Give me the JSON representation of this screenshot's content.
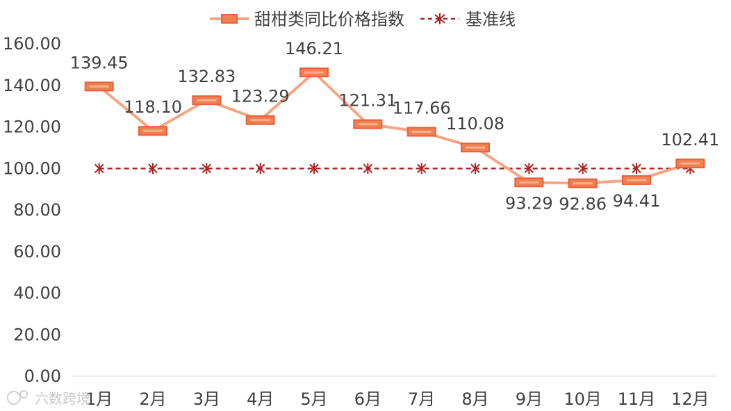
{
  "chart_data": {
    "type": "line",
    "title": "",
    "xlabel": "",
    "ylabel": "",
    "categories": [
      "1月",
      "2月",
      "3月",
      "4月",
      "5月",
      "6月",
      "7月",
      "8月",
      "9月",
      "10月",
      "11月",
      "12月"
    ],
    "ylim": [
      0,
      160
    ],
    "ytick_labels": [
      "0.00",
      "20.00",
      "40.00",
      "60.00",
      "80.00",
      "100.00",
      "120.00",
      "140.00",
      "160.00"
    ],
    "grid": false,
    "legend_position": "top",
    "series": [
      {
        "name": "甜柑类同比价格指数",
        "values": [
          139.45,
          118.1,
          132.83,
          123.29,
          146.21,
          121.31,
          117.66,
          110.08,
          93.29,
          92.86,
          94.41,
          102.41
        ],
        "data_labels": [
          "139.45",
          "118.10",
          "132.83",
          "123.29",
          "146.21",
          "121.31",
          "117.66",
          "110.08",
          "93.29",
          "92.86",
          "94.41",
          "102.41"
        ],
        "color": "#F4A582",
        "marker_color": "#F08050",
        "marker_border": "#E8603A"
      },
      {
        "name": "基准线",
        "values": [
          100,
          100,
          100,
          100,
          100,
          100,
          100,
          100,
          100,
          100,
          100,
          100
        ],
        "color": "#B22222",
        "style": "dashed",
        "marker": "asterisk"
      }
    ]
  },
  "watermark": "六数跨境"
}
